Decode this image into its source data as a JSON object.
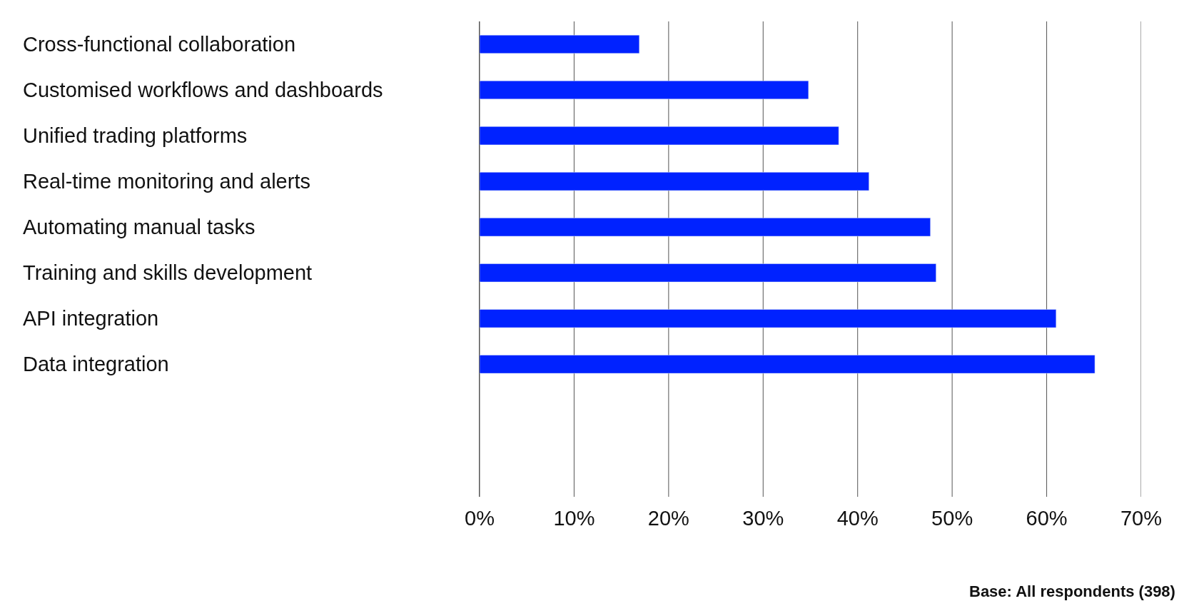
{
  "chart_data": {
    "type": "bar",
    "orientation": "horizontal",
    "categories": [
      "Cross-functional collaboration",
      "Customised workflows and dashboards",
      "Unified trading platforms",
      "Real-time monitoring and alerts",
      "Automating manual tasks",
      "Training and skills development",
      "API integration",
      "Data integration"
    ],
    "values": [
      16.9,
      34.8,
      38.0,
      41.2,
      47.7,
      48.3,
      61.0,
      65.1
    ],
    "color": "#0022ff",
    "xlim": [
      0,
      70
    ],
    "xticks": [
      {
        "value": 0,
        "label": "0%"
      },
      {
        "value": 10,
        "label": "10%"
      },
      {
        "value": 20,
        "label": "20%"
      },
      {
        "value": 30,
        "label": "30%"
      },
      {
        "value": 40,
        "label": "40%"
      },
      {
        "value": 50,
        "label": "50%"
      },
      {
        "value": 60,
        "label": "60%"
      },
      {
        "value": 70,
        "label": "70%"
      }
    ],
    "grid": "x",
    "annotations": [
      "Base: All respondents (398)"
    ]
  }
}
